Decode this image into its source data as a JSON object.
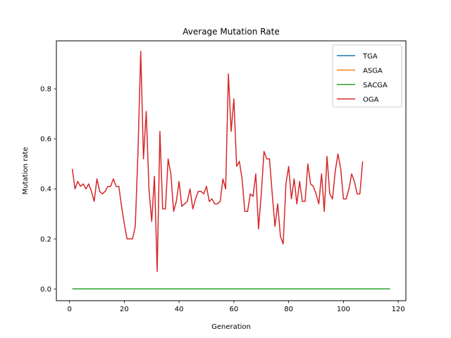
{
  "chart_data": {
    "type": "line",
    "title": "Average Mutation Rate",
    "xlabel": "Generation",
    "ylabel": "Mutation rate",
    "xlim": [
      -4.8,
      122.8
    ],
    "ylim": [
      -0.047,
      0.992
    ],
    "xticks": [
      0,
      20,
      40,
      60,
      80,
      100,
      120
    ],
    "yticks": [
      0.0,
      0.2,
      0.4,
      0.6,
      0.8
    ],
    "ytick_labels": [
      "0.0",
      "0.2",
      "0.4",
      "0.6",
      "0.8"
    ],
    "grid": false,
    "legend_position": "top-right",
    "series": [
      {
        "name": "TGA",
        "color": "#1f77b4",
        "x": [
          1,
          117
        ],
        "y": [
          0.0,
          0.0
        ]
      },
      {
        "name": "ASGA",
        "color": "#ff7f0e",
        "x": [
          1,
          117
        ],
        "y": [
          0.0,
          0.0
        ]
      },
      {
        "name": "SACGA",
        "color": "#2ca02c",
        "x": [
          1,
          117
        ],
        "y": [
          0.0,
          0.0
        ]
      },
      {
        "name": "OGA",
        "color": "#d62728",
        "x": [
          1,
          2,
          3,
          4,
          5,
          6,
          7,
          8,
          9,
          10,
          11,
          12,
          13,
          14,
          15,
          16,
          17,
          18,
          19,
          20,
          21,
          22,
          23,
          24,
          25,
          26,
          27,
          28,
          29,
          30,
          31,
          32,
          33,
          34,
          35,
          36,
          37,
          38,
          39,
          40,
          41,
          42,
          43,
          44,
          45,
          46,
          47,
          48,
          49,
          50,
          51,
          52,
          53,
          54,
          55,
          56,
          57,
          58,
          59,
          60,
          61,
          62,
          63,
          64,
          65,
          66,
          67,
          68,
          69,
          70,
          71,
          72,
          73,
          74,
          75,
          76,
          77,
          78,
          79,
          80,
          81,
          82,
          83,
          84,
          85,
          86,
          87,
          88,
          89,
          90,
          91,
          92,
          93,
          94,
          95,
          96,
          97,
          98,
          99,
          100,
          101,
          102,
          103,
          104,
          105,
          106,
          107
        ],
        "y": [
          0.48,
          0.4,
          0.43,
          0.41,
          0.42,
          0.4,
          0.42,
          0.39,
          0.35,
          0.44,
          0.39,
          0.38,
          0.39,
          0.41,
          0.41,
          0.44,
          0.41,
          0.41,
          0.33,
          0.26,
          0.2,
          0.2,
          0.2,
          0.25,
          0.55,
          0.95,
          0.52,
          0.71,
          0.4,
          0.27,
          0.45,
          0.07,
          0.63,
          0.32,
          0.32,
          0.52,
          0.46,
          0.31,
          0.35,
          0.43,
          0.33,
          0.34,
          0.35,
          0.4,
          0.32,
          0.36,
          0.39,
          0.39,
          0.38,
          0.41,
          0.35,
          0.36,
          0.34,
          0.34,
          0.35,
          0.44,
          0.4,
          0.86,
          0.63,
          0.76,
          0.49,
          0.51,
          0.44,
          0.31,
          0.31,
          0.38,
          0.37,
          0.46,
          0.24,
          0.38,
          0.55,
          0.52,
          0.52,
          0.38,
          0.25,
          0.34,
          0.21,
          0.18,
          0.42,
          0.49,
          0.36,
          0.44,
          0.34,
          0.43,
          0.35,
          0.35,
          0.5,
          0.42,
          0.41,
          0.38,
          0.34,
          0.46,
          0.31,
          0.53,
          0.38,
          0.36,
          0.47,
          0.54,
          0.48,
          0.36,
          0.36,
          0.4,
          0.46,
          0.43,
          0.38,
          0.38,
          0.51
        ]
      }
    ]
  }
}
